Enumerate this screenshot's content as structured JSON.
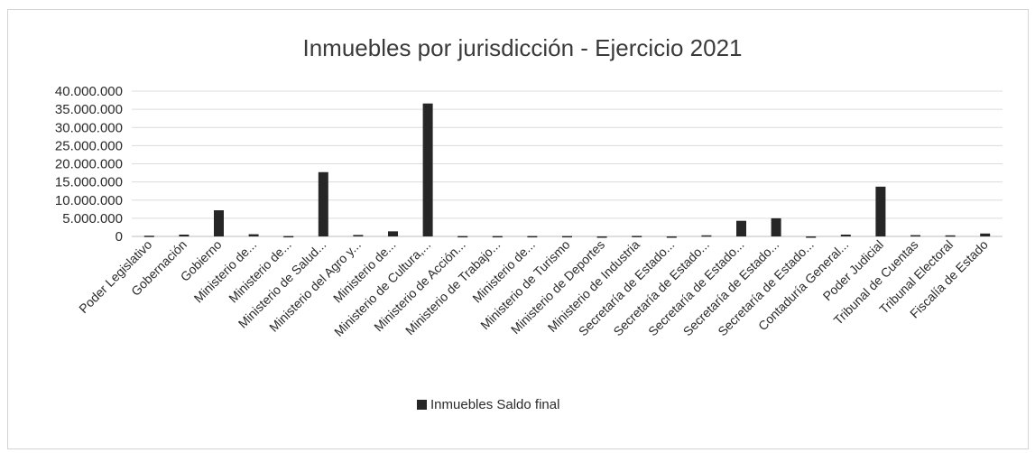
{
  "chart_data": {
    "type": "bar",
    "title": "Inmuebles por jurisdicción - Ejercicio 2021",
    "xlabel": "",
    "ylabel": "",
    "ylim": [
      0,
      40000000
    ],
    "yticks": [
      "0",
      "5.000.000",
      "10.000.000",
      "15.000.000",
      "20.000.000",
      "25.000.000",
      "30.000.000",
      "35.000.000",
      "40.000.000"
    ],
    "grid": true,
    "legend_position": "bottom",
    "categories": [
      "Poder Legislativo",
      "Gobernación",
      "Gobierno",
      "Ministerio de...",
      "Ministerio de...",
      "Ministerio de Salud...",
      "Ministerio del Agro y...",
      "Ministerio de...",
      "Ministerio de Cultura,...",
      "Ministerio de Acción...",
      "Ministerio de Trabajo...",
      "Ministerio de...",
      "Ministerio de Turismo",
      "Ministerio de Deportes",
      "Ministerio de Industria",
      "Secretaría de Estado...",
      "Secretaría de Estado...",
      "Secretaría de Estado...",
      "Secretaría de Estado...",
      "Secretaría de Estado...",
      "Contaduría General...",
      "Poder Judicial",
      "Tribunal de Cuentas",
      "Tribunal Electoral",
      "Fiscalía de Estado"
    ],
    "series": [
      {
        "name": "Inmuebles Saldo final",
        "color": "#262626",
        "values": [
          200000,
          500000,
          7200000,
          600000,
          100000,
          17700000,
          400000,
          1400000,
          36600000,
          100000,
          100000,
          100000,
          100000,
          0,
          150000,
          0,
          300000,
          4300000,
          5000000,
          0,
          500000,
          13700000,
          350000,
          300000,
          800000
        ]
      }
    ]
  },
  "colors": {
    "bar": "#262626",
    "grid": "#dcdcdc",
    "axis": "#bdbdbd",
    "text": "#2a2a2a"
  }
}
